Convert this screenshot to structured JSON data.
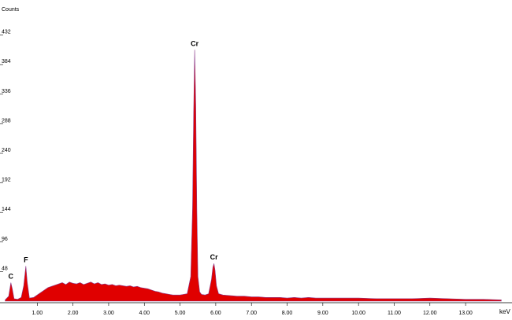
{
  "chart_data": {
    "type": "area",
    "y_label": "Counts",
    "x_label": "keV",
    "color": "#e00000",
    "line_color": "#8a3a8a",
    "xlim": [
      0,
      14.3
    ],
    "ylim": [
      0,
      480
    ],
    "yticks": [
      48,
      96,
      144,
      192,
      240,
      288,
      336,
      384,
      432
    ],
    "xticks": [
      {
        "value": 1,
        "label": "1.00"
      },
      {
        "value": 2,
        "label": "2.00"
      },
      {
        "value": 3,
        "label": "3.00"
      },
      {
        "value": 4,
        "label": "4.00"
      },
      {
        "value": 5,
        "label": "5.00"
      },
      {
        "value": 6,
        "label": "6.00"
      },
      {
        "value": 7,
        "label": "7.00"
      },
      {
        "value": 8,
        "label": "8.00"
      },
      {
        "value": 9,
        "label": "9.00"
      },
      {
        "value": 10,
        "label": "10.00"
      },
      {
        "value": 11,
        "label": "11.00"
      },
      {
        "value": 12,
        "label": "12.00"
      },
      {
        "value": 13,
        "label": "13.00"
      }
    ],
    "x": [
      0.1,
      0.2,
      0.26,
      0.3,
      0.35,
      0.45,
      0.55,
      0.62,
      0.68,
      0.72,
      0.78,
      0.9,
      1.0,
      1.1,
      1.2,
      1.3,
      1.4,
      1.5,
      1.6,
      1.7,
      1.8,
      1.9,
      2.0,
      2.1,
      2.2,
      2.3,
      2.4,
      2.5,
      2.6,
      2.7,
      2.8,
      2.9,
      3.0,
      3.1,
      3.2,
      3.3,
      3.4,
      3.5,
      3.6,
      3.7,
      3.8,
      3.9,
      4.0,
      4.1,
      4.2,
      4.3,
      4.4,
      4.5,
      4.6,
      4.7,
      4.8,
      4.9,
      5.0,
      5.1,
      5.2,
      5.3,
      5.35,
      5.38,
      5.41,
      5.44,
      5.47,
      5.5,
      5.55,
      5.6,
      5.7,
      5.8,
      5.88,
      5.92,
      5.95,
      5.98,
      6.02,
      6.08,
      6.2,
      6.4,
      6.6,
      6.8,
      7.0,
      7.2,
      7.4,
      7.6,
      7.8,
      8.0,
      8.2,
      8.4,
      8.6,
      8.8,
      9.0,
      9.5,
      10.0,
      10.5,
      11.0,
      11.5,
      12.0,
      12.5,
      13.0,
      13.5,
      14.0
    ],
    "values": [
      2,
      8,
      30,
      20,
      4,
      3,
      6,
      25,
      57,
      30,
      5,
      6,
      10,
      14,
      18,
      22,
      24,
      26,
      28,
      30,
      27,
      31,
      29,
      28,
      30,
      27,
      29,
      31,
      28,
      30,
      27,
      28,
      26,
      27,
      25,
      26,
      25,
      24,
      25,
      23,
      24,
      22,
      21,
      20,
      18,
      16,
      15,
      13,
      12,
      11,
      10,
      10,
      10,
      11,
      12,
      40,
      150,
      300,
      408,
      320,
      150,
      40,
      15,
      11,
      10,
      12,
      35,
      55,
      61,
      50,
      25,
      12,
      10,
      9,
      8,
      8,
      7,
      7,
      6,
      6,
      6,
      5,
      6,
      5,
      6,
      5,
      5,
      5,
      5,
      4,
      4,
      4,
      5,
      4,
      3,
      3,
      2
    ],
    "annotations": [
      {
        "text": "C",
        "x": 0.26
      },
      {
        "text": "F",
        "x": 0.68
      },
      {
        "text": "Cr",
        "x": 5.41
      },
      {
        "text": "Cr",
        "x": 5.95
      }
    ]
  }
}
